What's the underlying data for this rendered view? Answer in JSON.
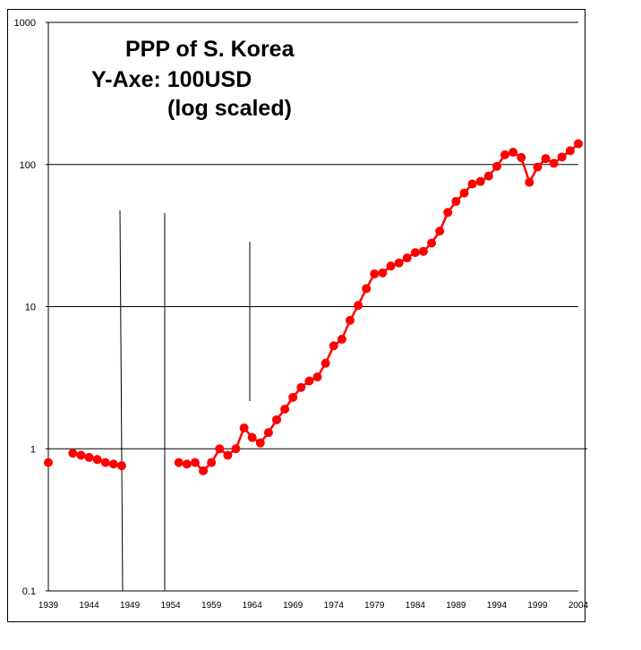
{
  "chart_data": {
    "type": "line",
    "title_lines": [
      "PPP of S. Korea",
      "Y-Axe: 100USD",
      "(log scaled)"
    ],
    "y_scale": "log",
    "ylim": [
      0.1,
      1000
    ],
    "xlim": [
      1939,
      2004
    ],
    "y_ticks": [
      "1000",
      "100",
      "10",
      "1",
      "0.1"
    ],
    "x_ticks": [
      "1939",
      "1944",
      "1949",
      "1954",
      "1959",
      "1964",
      "1969",
      "1974",
      "1979",
      "1984",
      "1989",
      "1994",
      "1999",
      "2004"
    ],
    "grid": "horizontal",
    "legend": "none",
    "series_color": "#ff0000",
    "segments": [
      {
        "x": [
          1939
        ],
        "y": [
          0.8
        ]
      },
      {
        "x": [
          1942,
          1943,
          1944,
          1945,
          1946,
          1947,
          1948
        ],
        "y": [
          0.93,
          0.9,
          0.87,
          0.84,
          0.8,
          0.78,
          0.76
        ]
      },
      {
        "x": [
          1955,
          1956,
          1957,
          1958,
          1959,
          1960,
          1961,
          1962,
          1963,
          1964,
          1965,
          1966,
          1967,
          1968,
          1969,
          1970,
          1971,
          1972,
          1973,
          1974,
          1975,
          1976,
          1977,
          1978,
          1979,
          1980,
          1981,
          1982,
          1983,
          1984,
          1985,
          1986,
          1987,
          1988,
          1989,
          1990,
          1991,
          1992,
          1993,
          1994,
          1995,
          1996,
          1997,
          1998,
          1999,
          2000,
          2001,
          2002,
          2003,
          2004
        ],
        "y": [
          0.8,
          0.78,
          0.8,
          0.7,
          0.8,
          1.0,
          0.9,
          1.0,
          1.4,
          1.2,
          1.1,
          1.3,
          1.6,
          1.9,
          2.3,
          2.7,
          3.0,
          3.2,
          4.0,
          5.3,
          5.9,
          8.0,
          10.2,
          13.4,
          17.0,
          17.3,
          19.3,
          20.3,
          22.0,
          24.0,
          24.5,
          28.0,
          34.0,
          46.0,
          55.0,
          63.0,
          73.0,
          76.0,
          83.0,
          97.0,
          117.0,
          122.0,
          112.0,
          75.0,
          96.0,
          110.0,
          102.0,
          113.0,
          125.0,
          140.0
        ]
      }
    ]
  }
}
